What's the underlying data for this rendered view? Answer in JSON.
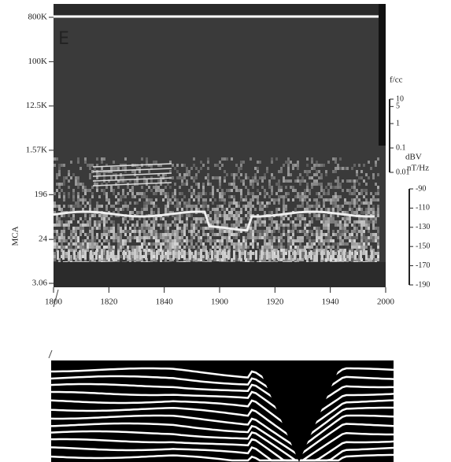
{
  "chart_data": {
    "type": "spectrogram",
    "panel_label": "E",
    "ylabel": "MCA",
    "ylog": true,
    "ylim": [
      3.06,
      800000
    ],
    "yticks": [
      {
        "value": 800000,
        "label": "800K"
      },
      {
        "value": 100000,
        "label": "100K"
      },
      {
        "value": 12500,
        "label": "12.5K"
      },
      {
        "value": 1570,
        "label": "1.57K"
      },
      196,
      24,
      3.06
    ],
    "x_tick_labels": [
      "1800",
      "1820",
      "1840",
      "1900",
      "1920",
      "1940",
      "2000"
    ],
    "scales": [
      {
        "label": "f/cc",
        "log": true,
        "lim": [
          0.01,
          10
        ],
        "ticks": [
          10,
          5,
          1,
          0.1,
          0.01
        ]
      },
      {
        "label": "dBV",
        "unit": "nT/Hz",
        "log": false,
        "lim": [
          -190,
          -90
        ],
        "ticks": [
          -90,
          -110,
          -130,
          -150,
          -170,
          -190
        ]
      }
    ]
  }
}
